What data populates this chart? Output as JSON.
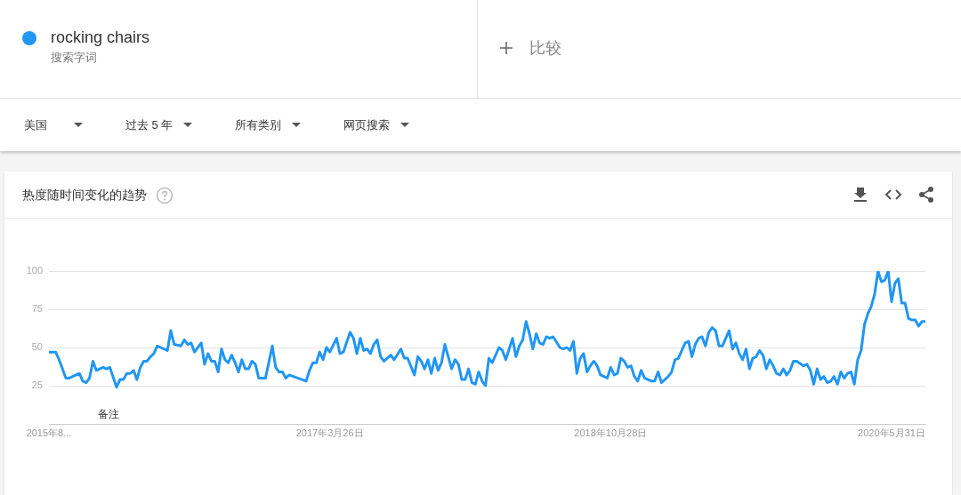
{
  "chart_data": {
    "type": "line",
    "title": "热度随时间变化的趋势",
    "annotations": [
      "搜索字词",
      "比较",
      "美国",
      "过去 5 年",
      "所有类别",
      "网页搜索",
      "备注"
    ],
    "legend": "top left",
    "grid": "y",
    "xlim": [
      "2015-08-23",
      "2020-08-09"
    ],
    "xticks": [
      {
        "value": "2015-08-23",
        "label": "2015年8..."
      },
      {
        "value": "2017-03-26",
        "label": "2017年3月26日"
      },
      {
        "value": "2018-10-28",
        "label": "2018年10月28日"
      },
      {
        "value": "2020-05-31",
        "label": "2020年5月31日"
      }
    ],
    "ylim": [
      0,
      100
    ],
    "yticks": [
      25,
      50,
      75,
      100
    ],
    "series": [
      {
        "name": "rocking chairs",
        "color": "#2196f3",
        "x": [
          "2015-08-23",
          "2015-09-06",
          "2015-09-13",
          "2015-09-27",
          "2015-10-04",
          "2015-10-25",
          "2015-11-01",
          "2015-11-08",
          "2015-11-15",
          "2015-11-22",
          "2015-11-29",
          "2015-12-13",
          "2015-12-20",
          "2015-12-27",
          "2016-01-10",
          "2016-01-17",
          "2016-01-24",
          "2016-01-31",
          "2016-02-07",
          "2016-02-14",
          "2016-02-21",
          "2016-02-28",
          "2016-03-06",
          "2016-03-13",
          "2016-03-20",
          "2016-03-27",
          "2016-04-03",
          "2016-04-10",
          "2016-04-24",
          "2016-05-01",
          "2016-05-08",
          "2016-05-22",
          "2016-05-29",
          "2016-06-05",
          "2016-06-12",
          "2016-06-19",
          "2016-07-03",
          "2016-07-10",
          "2016-07-17",
          "2016-07-24",
          "2016-07-31",
          "2016-08-07",
          "2016-08-14",
          "2016-08-21",
          "2016-08-28",
          "2016-09-04",
          "2016-09-11",
          "2016-09-18",
          "2016-09-25",
          "2016-10-02",
          "2016-10-09",
          "2016-10-16",
          "2016-10-23",
          "2016-10-30",
          "2016-11-13",
          "2016-11-27",
          "2016-12-04",
          "2016-12-11",
          "2016-12-18",
          "2016-12-25",
          "2017-01-01",
          "2017-02-05",
          "2017-02-12",
          "2017-02-19",
          "2017-02-26",
          "2017-03-05",
          "2017-03-12",
          "2017-03-19",
          "2017-03-26",
          "2017-04-09",
          "2017-04-16",
          "2017-04-23",
          "2017-05-07",
          "2017-05-14",
          "2017-05-21",
          "2017-05-28",
          "2017-06-04",
          "2017-06-11",
          "2017-06-18",
          "2017-06-25",
          "2017-07-02",
          "2017-07-09",
          "2017-07-16",
          "2017-07-30",
          "2017-08-06",
          "2017-08-20",
          "2017-08-27",
          "2017-09-03",
          "2017-09-17",
          "2017-09-24",
          "2017-10-01",
          "2017-10-08",
          "2017-10-15",
          "2017-10-22",
          "2017-10-29",
          "2017-11-05",
          "2017-11-12",
          "2017-11-19",
          "2017-11-26",
          "2017-12-03",
          "2017-12-10",
          "2017-12-17",
          "2017-12-24",
          "2017-12-31",
          "2018-01-07",
          "2018-01-14",
          "2018-01-21",
          "2018-01-28",
          "2018-02-04",
          "2018-02-11",
          "2018-02-18",
          "2018-02-25",
          "2018-03-11",
          "2018-03-18",
          "2018-03-25",
          "2018-04-08",
          "2018-04-15",
          "2018-04-22",
          "2018-04-29",
          "2018-05-06",
          "2018-05-13",
          "2018-05-20",
          "2018-05-27",
          "2018-06-03",
          "2018-06-10",
          "2018-06-17",
          "2018-06-24",
          "2018-07-01",
          "2018-07-15",
          "2018-07-22",
          "2018-07-29",
          "2018-08-05",
          "2018-08-12",
          "2018-08-19",
          "2018-08-26",
          "2018-09-02",
          "2018-09-09",
          "2018-09-16",
          "2018-09-23",
          "2018-09-30",
          "2018-10-07",
          "2018-10-21",
          "2018-10-28",
          "2018-11-04",
          "2018-11-11",
          "2018-11-18",
          "2018-11-25",
          "2018-12-02",
          "2018-12-09",
          "2018-12-16",
          "2018-12-23",
          "2018-12-30",
          "2019-01-06",
          "2019-01-13",
          "2019-01-20",
          "2019-01-27",
          "2019-02-03",
          "2019-02-10",
          "2019-02-24",
          "2019-03-03",
          "2019-03-10",
          "2019-03-17",
          "2019-03-31",
          "2019-04-07",
          "2019-04-14",
          "2019-04-21",
          "2019-04-28",
          "2019-05-05",
          "2019-05-12",
          "2019-05-19",
          "2019-05-26",
          "2019-06-02",
          "2019-06-09",
          "2019-06-16",
          "2019-06-30",
          "2019-07-07",
          "2019-07-14",
          "2019-07-21",
          "2019-07-28",
          "2019-08-04",
          "2019-08-11",
          "2019-08-18",
          "2019-08-25",
          "2019-09-01",
          "2019-09-08",
          "2019-09-15",
          "2019-09-22",
          "2019-09-29",
          "2019-10-06",
          "2019-10-13",
          "2019-10-20",
          "2019-10-27",
          "2019-11-03",
          "2019-11-10",
          "2019-11-17",
          "2019-12-01",
          "2019-12-08",
          "2019-12-15",
          "2019-12-22",
          "2019-12-29",
          "2020-01-05",
          "2020-01-12",
          "2020-01-19",
          "2020-01-26",
          "2020-02-02",
          "2020-02-09",
          "2020-02-16",
          "2020-02-23",
          "2020-03-01",
          "2020-03-08",
          "2020-03-15",
          "2020-03-22",
          "2020-03-29",
          "2020-04-05",
          "2020-04-12",
          "2020-04-19",
          "2020-04-26",
          "2020-05-03",
          "2020-05-10",
          "2020-05-17",
          "2020-05-24",
          "2020-05-31",
          "2020-06-07",
          "2020-06-14",
          "2020-06-21",
          "2020-06-28",
          "2020-07-05",
          "2020-07-12",
          "2020-07-19",
          "2020-07-26",
          "2020-08-02",
          "2020-08-09"
        ],
        "values": [
          47,
          47,
          42,
          30,
          30,
          33,
          28,
          27,
          30,
          41,
          35,
          37,
          36,
          37,
          24,
          29,
          29,
          33,
          33,
          35,
          29,
          37,
          41,
          41,
          44,
          46,
          51,
          50,
          48,
          61,
          52,
          51,
          55,
          52,
          53,
          47,
          53,
          39,
          46,
          41,
          41,
          34,
          49,
          42,
          40,
          45,
          40,
          34,
          42,
          36,
          36,
          41,
          39,
          30,
          30,
          51,
          37,
          34,
          34,
          30,
          32,
          28,
          35,
          40,
          40,
          47,
          42,
          50,
          47,
          56,
          46,
          47,
          60,
          56,
          46,
          56,
          48,
          49,
          46,
          52,
          55,
          44,
          41,
          45,
          42,
          49,
          43,
          43,
          32,
          44,
          41,
          36,
          42,
          33,
          43,
          35,
          40,
          52,
          44,
          36,
          42,
          39,
          29,
          29,
          36,
          27,
          26,
          34,
          28,
          25,
          43,
          40,
          50,
          48,
          42,
          56,
          44,
          51,
          55,
          67,
          59,
          49,
          59,
          53,
          52,
          57,
          56,
          57,
          50,
          49,
          50,
          48,
          54,
          33,
          43,
          46,
          34,
          38,
          41,
          38,
          32,
          30,
          37,
          32,
          33,
          43,
          41,
          37,
          38,
          31,
          28,
          35,
          30,
          29,
          28,
          28,
          34,
          27,
          31,
          34,
          42,
          43,
          53,
          54,
          44,
          52,
          56,
          57,
          51,
          60,
          63,
          61,
          51,
          51,
          61,
          49,
          53,
          46,
          42,
          49,
          36,
          43,
          44,
          48,
          45,
          36,
          42,
          38,
          33,
          32,
          36,
          32,
          35,
          41,
          41,
          38,
          39,
          35,
          26,
          36,
          29,
          31,
          27,
          28,
          31,
          26,
          34,
          30,
          33,
          34,
          26,
          42,
          48,
          65,
          72,
          77,
          85,
          100,
          93,
          94,
          100,
          80,
          92,
          95,
          79,
          79,
          69,
          68,
          68,
          64,
          67,
          67
        ]
      }
    ]
  }
}
